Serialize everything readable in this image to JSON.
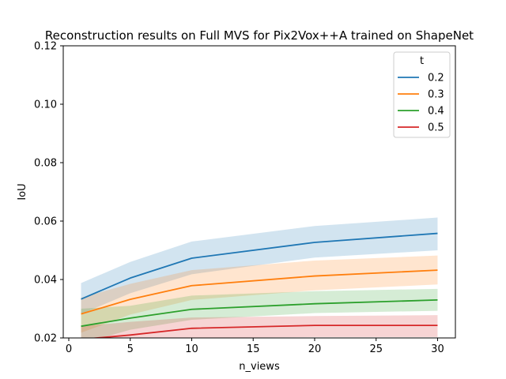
{
  "chart_data": {
    "type": "line",
    "title": "Reconstruction results on Full MVS for Pix2Vox++A trained on ShapeNet",
    "xlabel": "n_views",
    "ylabel": "IoU",
    "xlim": [
      -0.45,
      31.45
    ],
    "ylim": [
      0.02,
      0.12
    ],
    "xticks": [
      0,
      5,
      10,
      15,
      20,
      25,
      30
    ],
    "yticks": [
      0.02,
      0.04,
      0.06,
      0.08,
      0.1,
      0.12
    ],
    "ytick_labels": [
      "0.02",
      "0.04",
      "0.06",
      "0.08",
      "0.10",
      "0.12"
    ],
    "grid": false,
    "legend": {
      "title": "t",
      "position": "top-right"
    },
    "x": [
      1,
      5,
      10,
      20,
      30
    ],
    "series": [
      {
        "name": "0.2",
        "color": "#1f77b4",
        "values": [
          0.0333,
          0.0405,
          0.0473,
          0.0527,
          0.0558
        ],
        "lower": [
          0.0282,
          0.0353,
          0.0418,
          0.0475,
          0.05
        ],
        "upper": [
          0.0388,
          0.046,
          0.053,
          0.0583,
          0.0612
        ]
      },
      {
        "name": "0.3",
        "color": "#ff7f0e",
        "values": [
          0.0282,
          0.0332,
          0.0379,
          0.0412,
          0.0432
        ],
        "lower": [
          0.0218,
          0.028,
          0.033,
          0.0363,
          0.0383
        ],
        "upper": [
          0.0338,
          0.0385,
          0.0432,
          0.0465,
          0.0482
        ]
      },
      {
        "name": "0.4",
        "color": "#2ca02c",
        "values": [
          0.024,
          0.0268,
          0.0298,
          0.0317,
          0.033
        ],
        "lower": [
          0.018,
          0.0228,
          0.0262,
          0.0285,
          0.0293
        ],
        "upper": [
          0.03,
          0.031,
          0.0345,
          0.036,
          0.0368
        ]
      },
      {
        "name": "0.5",
        "color": "#d62728",
        "values": [
          0.0195,
          0.021,
          0.0233,
          0.0243,
          0.0243
        ],
        "lower": [
          0.015,
          0.0175,
          0.02,
          0.0203,
          0.0203
        ],
        "upper": [
          0.024,
          0.0255,
          0.027,
          0.0275,
          0.0278
        ]
      }
    ]
  }
}
